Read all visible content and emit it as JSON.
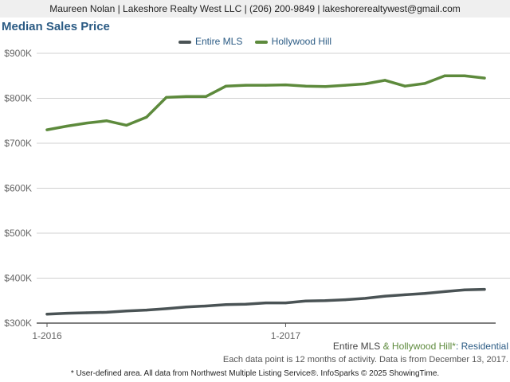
{
  "header": {
    "contact": "Maureen Nolan | Lakeshore Realty West LLC | (206) 200-9849 | lakeshorerealtywest@gmail.com"
  },
  "colors": {
    "mls": "#4a5355",
    "hollywood": "#5d8a3c",
    "accent": "#2b5b84"
  },
  "chart_data": {
    "type": "line",
    "title": "Median Sales Price",
    "xlabel": "",
    "ylabel": "",
    "ylim": [
      300000,
      900000
    ],
    "yticks": [
      300000,
      400000,
      500000,
      600000,
      700000,
      800000,
      900000
    ],
    "ytick_labels": [
      "$300K",
      "$400K",
      "$500K",
      "$600K",
      "$700K",
      "$800K",
      "$900K"
    ],
    "x": [
      "2016-01",
      "2016-02",
      "2016-03",
      "2016-04",
      "2016-05",
      "2016-06",
      "2016-07",
      "2016-08",
      "2016-09",
      "2016-10",
      "2016-11",
      "2016-12",
      "2017-01",
      "2017-02",
      "2017-03",
      "2017-04",
      "2017-05",
      "2017-06",
      "2017-07",
      "2017-08",
      "2017-09",
      "2017-10",
      "2017-11"
    ],
    "xticks": [
      "2016-01",
      "2017-01"
    ],
    "xtick_labels": [
      "1-2016",
      "1-2017"
    ],
    "grid": true,
    "legend": "top-center",
    "series": [
      {
        "name": "Entire MLS",
        "color": "#4a5355",
        "values": [
          320000,
          322000,
          323000,
          324000,
          327000,
          329000,
          332000,
          336000,
          338000,
          341000,
          342000,
          345000,
          345000,
          349000,
          350000,
          352000,
          355000,
          360000,
          363000,
          366000,
          370000,
          374000,
          375000
        ]
      },
      {
        "name": "Hollywood Hill",
        "color": "#5d8a3c",
        "values": [
          730000,
          738000,
          745000,
          750000,
          740000,
          758000,
          802000,
          804000,
          804000,
          827000,
          829000,
          829000,
          830000,
          827000,
          826000,
          829000,
          832000,
          840000,
          827000,
          833000,
          850000,
          850000,
          845000
        ]
      }
    ]
  },
  "footer": {
    "legend_mls": "Entire MLS",
    "legend_amp": " & ",
    "legend_hollywood": "Hollywood Hill*",
    "legend_suffix": ": Residential",
    "note": "Each data point is 12 months of activity. Data is from December 13, 2017.",
    "disclaimer": "* User-defined area. All data from Northwest Multiple Listing Service®. InfoSparks © 2025 ShowingTime."
  }
}
